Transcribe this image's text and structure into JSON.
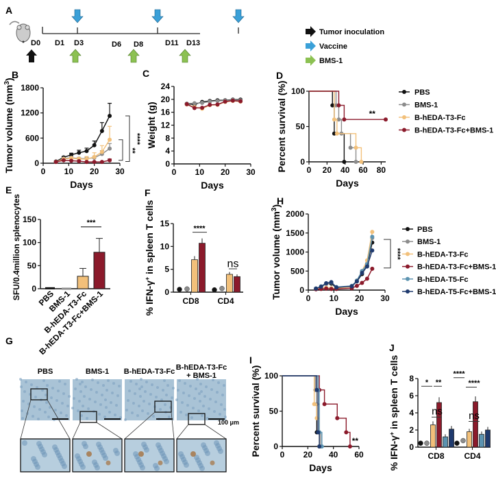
{
  "colors": {
    "PBS": "#111111",
    "BMS-1": "#8c8c8c",
    "B-hEDA-T3-Fc": "#f2c07a",
    "B-hEDA-T3-Fc+BMS-1": "#8b1a2b",
    "B-hEDA-T5-Fc": "#5c93b0",
    "B-hEDA-T5-Fc+BMS-1": "#1f3a6e",
    "vaccine": "#3aa0d8",
    "bms": "#8cc152"
  },
  "panelA": {
    "label": "A",
    "days": [
      "D0",
      "D1",
      "D3",
      "D6",
      "D8",
      "D11",
      "D13"
    ],
    "legend": [
      "Tumor inoculation",
      "Vaccine",
      "BMS-1"
    ]
  },
  "chart_data": [
    {
      "id": "B",
      "type": "line",
      "xlabel": "Days",
      "ylabel": "Tumor volume (mm3)",
      "xlim": [
        0,
        30
      ],
      "ylim": [
        0,
        1800
      ],
      "xticks": [
        0,
        10,
        20,
        30
      ],
      "yticks": [
        0,
        600,
        1200,
        1800
      ],
      "x": [
        5,
        8,
        11,
        14,
        17,
        20,
        23,
        26
      ],
      "series": [
        {
          "name": "PBS",
          "values": [
            40,
            140,
            200,
            250,
            290,
            430,
            770,
            1130
          ],
          "err": [
            10,
            20,
            40,
            60,
            70,
            100,
            200,
            300
          ]
        },
        {
          "name": "BMS-1",
          "values": [
            30,
            110,
            130,
            110,
            110,
            130,
            220,
            350
          ],
          "err": [
            10,
            20,
            30,
            30,
            30,
            40,
            80,
            120
          ]
        },
        {
          "name": "B-hEDA-T3-Fc",
          "values": [
            30,
            100,
            120,
            100,
            100,
            150,
            270,
            560
          ],
          "err": [
            10,
            20,
            30,
            40,
            60,
            100,
            150,
            320
          ]
        },
        {
          "name": "B-hEDA-T3-Fc+BMS-1",
          "values": [
            30,
            70,
            60,
            50,
            30,
            30,
            30,
            70
          ],
          "err": [
            5,
            10,
            10,
            10,
            10,
            10,
            10,
            30
          ]
        }
      ],
      "annotations": [
        "**",
        "****"
      ]
    },
    {
      "id": "C",
      "type": "line",
      "xlabel": "Days",
      "ylabel": "Weight (g)",
      "xlim": [
        0,
        30
      ],
      "ylim": [
        0,
        24
      ],
      "xticks": [
        0,
        10,
        20,
        30
      ],
      "yticks": [
        0,
        4,
        8,
        12,
        16,
        20,
        24
      ],
      "x": [
        5,
        8,
        11,
        14,
        17,
        20,
        23,
        26
      ],
      "series": [
        {
          "name": "PBS",
          "values": [
            18.6,
            18.4,
            19.2,
            19.5,
            19.7,
            19.7,
            19.9,
            19.9
          ]
        },
        {
          "name": "BMS-1",
          "values": [
            18.7,
            18.8,
            18.9,
            19.3,
            19.5,
            19.6,
            19.8,
            19.7
          ]
        },
        {
          "name": "B-hEDA-T3-Fc",
          "values": [
            18.4,
            17.6,
            17.1,
            18.2,
            18.3,
            19.2,
            19.5,
            19.3
          ]
        },
        {
          "name": "B-hEDA-T3-Fc+BMS-1",
          "values": [
            18.5,
            17.3,
            17.4,
            18.3,
            18.4,
            19.3,
            19.6,
            19.4
          ]
        }
      ]
    },
    {
      "id": "D",
      "type": "line",
      "xlabel": "Days",
      "ylabel": "Percent survival (%)",
      "xlim": [
        0,
        85
      ],
      "ylim": [
        0,
        100
      ],
      "xticks": [
        0,
        20,
        40,
        60,
        80
      ],
      "yticks": [
        0,
        50,
        100
      ],
      "series": [
        {
          "name": "PBS",
          "steps": [
            [
              0,
              100
            ],
            [
              26,
              100
            ],
            [
              26,
              80
            ],
            [
              28,
              80
            ],
            [
              28,
              40
            ],
            [
              39,
              40
            ],
            [
              39,
              0
            ]
          ]
        },
        {
          "name": "BMS-1",
          "steps": [
            [
              0,
              100
            ],
            [
              30,
              100
            ],
            [
              30,
              80
            ],
            [
              33,
              80
            ],
            [
              33,
              60
            ],
            [
              36,
              60
            ],
            [
              36,
              40
            ],
            [
              46,
              40
            ],
            [
              46,
              20
            ],
            [
              52,
              20
            ],
            [
              52,
              0
            ]
          ]
        },
        {
          "name": "B-hEDA-T3-Fc",
          "steps": [
            [
              0,
              100
            ],
            [
              28,
              100
            ],
            [
              28,
              60
            ],
            [
              31,
              60
            ],
            [
              31,
              40
            ],
            [
              52,
              40
            ],
            [
              52,
              20
            ],
            [
              58,
              20
            ],
            [
              58,
              0
            ]
          ]
        },
        {
          "name": "B-hEDA-T3-Fc+BMS-1",
          "steps": [
            [
              0,
              100
            ],
            [
              33,
              100
            ],
            [
              33,
              80
            ],
            [
              39,
              80
            ],
            [
              39,
              60
            ],
            [
              85,
              60
            ]
          ]
        }
      ],
      "annotations": [
        "**"
      ],
      "legend": [
        "PBS",
        "BMS-1",
        "B-hEDA-T3-Fc",
        "B-hEDA-T3-Fc+BMS-1"
      ]
    },
    {
      "id": "E",
      "type": "bar",
      "xlabel": "",
      "ylabel": "SFU/0.4million splenocytes",
      "ylim": [
        0,
        150
      ],
      "yticks": [
        0,
        50,
        100,
        150
      ],
      "categories": [
        "PBS",
        "BMS-1",
        "B-hEDA-T3-Fc",
        "B-hEDA-T3-Fc+BMS-1"
      ],
      "values": [
        1,
        0,
        27,
        79
      ],
      "err": [
        1,
        0,
        17,
        30
      ],
      "annotations": [
        "***"
      ]
    },
    {
      "id": "F",
      "type": "bar",
      "ylabel": "% IFN-γ+ in spleen T cells",
      "ylim": [
        0,
        15
      ],
      "yticks": [
        0,
        5,
        10,
        15
      ],
      "categories": [
        "CD8",
        "CD4"
      ],
      "series": [
        {
          "name": "PBS",
          "values": [
            0.3,
            0.2
          ]
        },
        {
          "name": "BMS-1",
          "values": [
            0.4,
            0.5
          ]
        },
        {
          "name": "B-hEDA-T3-Fc",
          "values": [
            7.1,
            3.9
          ]
        },
        {
          "name": "B-hEDA-T3-Fc+BMS-1",
          "values": [
            10.7,
            3.4
          ]
        }
      ],
      "annotations": [
        "****",
        "ns"
      ]
    },
    {
      "id": "H",
      "type": "line",
      "xlabel": "Days",
      "ylabel": "Tumor volume (mm3)",
      "xlim": [
        0,
        30
      ],
      "ylim": [
        0,
        2000
      ],
      "xticks": [
        0,
        10,
        20,
        30
      ],
      "yticks": [
        0,
        500,
        1000,
        1500,
        2000
      ],
      "x": [
        3,
        5,
        7,
        9,
        11,
        17,
        19,
        21,
        23,
        25
      ],
      "series": [
        {
          "name": "PBS",
          "values": [
            40,
            80,
            170,
            170,
            60,
            100,
            230,
            420,
            650,
            1250
          ]
        },
        {
          "name": "BMS-1",
          "values": [
            40,
            90,
            160,
            200,
            70,
            110,
            250,
            450,
            700,
            1370
          ]
        },
        {
          "name": "B-hEDA-T3-Fc",
          "values": [
            30,
            50,
            60,
            50,
            40,
            90,
            250,
            500,
            780,
            1530
          ]
        },
        {
          "name": "B-hEDA-T3-Fc+BMS-1",
          "values": [
            20,
            30,
            40,
            30,
            30,
            50,
            110,
            190,
            300,
            560
          ]
        },
        {
          "name": "B-hEDA-T5-Fc",
          "values": [
            40,
            100,
            180,
            200,
            80,
            110,
            250,
            500,
            680,
            1400
          ]
        },
        {
          "name": "B-hEDA-T5-Fc+BMS-1",
          "values": [
            40,
            90,
            180,
            210,
            70,
            100,
            230,
            450,
            620,
            1040
          ]
        }
      ],
      "annotations": [
        "****"
      ],
      "legend": [
        "PBS",
        "BMS-1",
        "B-hEDA-T3-Fc",
        "B-hEDA-T3-Fc+BMS-1",
        "B-hEDA-T5-Fc",
        "B-hEDA-T5-Fc+BMS-1"
      ]
    },
    {
      "id": "I",
      "type": "line",
      "xlabel": "Days",
      "ylabel": "Percent survival (%)",
      "xlim": [
        0,
        60
      ],
      "ylim": [
        0,
        100
      ],
      "xticks": [
        0,
        20,
        40,
        60
      ],
      "yticks": [
        0,
        50,
        100
      ],
      "series": [
        {
          "name": "PBS",
          "steps": [
            [
              0,
              100
            ],
            [
              26,
              100
            ],
            [
              26,
              80
            ],
            [
              27,
              80
            ],
            [
              27,
              20
            ],
            [
              29,
              20
            ],
            [
              29,
              0
            ]
          ]
        },
        {
          "name": "BMS-1",
          "steps": [
            [
              0,
              100
            ],
            [
              26,
              100
            ],
            [
              26,
              80
            ],
            [
              27,
              80
            ],
            [
              27,
              60
            ],
            [
              29,
              60
            ],
            [
              29,
              20
            ],
            [
              30,
              20
            ],
            [
              30,
              0
            ]
          ]
        },
        {
          "name": "B-hEDA-T3-Fc",
          "steps": [
            [
              0,
              100
            ],
            [
              25,
              100
            ],
            [
              25,
              60
            ],
            [
              27,
              60
            ],
            [
              27,
              40
            ],
            [
              29,
              40
            ],
            [
              29,
              0
            ]
          ]
        },
        {
          "name": "B-hEDA-T3-Fc+BMS-1",
          "steps": [
            [
              0,
              100
            ],
            [
              29,
              100
            ],
            [
              29,
              80
            ],
            [
              33,
              80
            ],
            [
              33,
              60
            ],
            [
              43,
              60
            ],
            [
              43,
              40
            ],
            [
              50,
              40
            ],
            [
              50,
              20
            ],
            [
              53,
              20
            ],
            [
              53,
              0
            ]
          ]
        },
        {
          "name": "B-hEDA-T5-Fc",
          "steps": [
            [
              0,
              100
            ],
            [
              28,
              100
            ],
            [
              28,
              80
            ],
            [
              29,
              80
            ],
            [
              29,
              20
            ],
            [
              31,
              20
            ],
            [
              31,
              0
            ]
          ]
        },
        {
          "name": "B-hEDA-T5-Fc+BMS-1",
          "steps": [
            [
              0,
              100
            ],
            [
              27,
              100
            ],
            [
              27,
              80
            ],
            [
              28,
              80
            ],
            [
              28,
              20
            ],
            [
              29,
              20
            ],
            [
              29,
              0
            ]
          ]
        }
      ],
      "annotations": [
        "**"
      ]
    },
    {
      "id": "J",
      "type": "bar",
      "ylabel": "% IFN-γ+ in spleen T cells",
      "ylim": [
        0,
        8
      ],
      "yticks": [
        0,
        2,
        4,
        6,
        8
      ],
      "categories": [
        "CD8",
        "CD4"
      ],
      "series": [
        {
          "name": "PBS",
          "values": [
            0.3,
            0.3
          ]
        },
        {
          "name": "BMS-1",
          "values": [
            0.3,
            0.6
          ]
        },
        {
          "name": "B-hEDA-T3-Fc",
          "values": [
            2.6,
            1.8
          ]
        },
        {
          "name": "B-hEDA-T3-Fc+BMS-1",
          "values": [
            5.2,
            5.3
          ]
        },
        {
          "name": "B-hEDA-T5-Fc",
          "values": [
            1.2,
            1.5
          ]
        },
        {
          "name": "B-hEDA-T5-Fc+BMS-1",
          "values": [
            2.1,
            2.0
          ]
        }
      ],
      "annotations": [
        "*",
        "**",
        "ns",
        "****",
        "****",
        "ns"
      ]
    }
  ],
  "panelG": {
    "label": "G",
    "titles": [
      "PBS",
      "BMS-1",
      "B-hEDA-T3-Fc",
      "B-hEDA-T3-Fc\n+ BMS-1"
    ],
    "scale_bar": "100 μm"
  }
}
